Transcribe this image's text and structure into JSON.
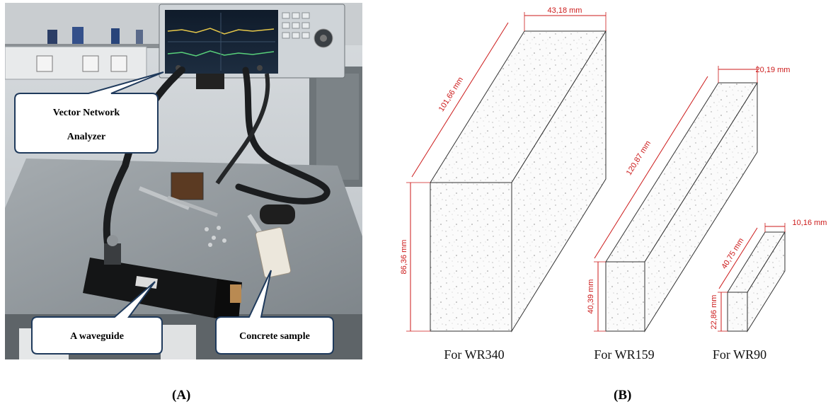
{
  "panel_a": {
    "label": "(A)",
    "callouts": {
      "vna": [
        "Vector Network",
        "Analyzer"
      ],
      "waveguide": "A waveguide",
      "sample": "Concrete sample"
    }
  },
  "panel_b": {
    "label": "(B)",
    "blocks": [
      {
        "caption": "For WR340",
        "width": "43,18 mm",
        "length": "101,66 mm",
        "height": "86,36 mm"
      },
      {
        "caption": "For WR159",
        "width": "20,19 mm",
        "length": "120,87 mm",
        "height": "40,39 mm"
      },
      {
        "caption": "For WR90",
        "width": "10,16 mm",
        "length": "40,75 mm",
        "height": "22,86 mm"
      }
    ]
  },
  "colors": {
    "dimension_line": "#cc1a1a",
    "callout_border": "#1f3a5c",
    "edge": "#333333"
  }
}
